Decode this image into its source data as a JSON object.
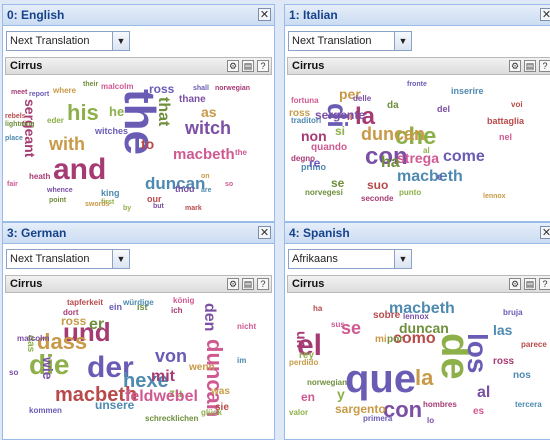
{
  "panels": [
    {
      "title": "0: English",
      "selector": "Next Translation",
      "cirrus_label": "Cirrus",
      "words": [
        "the",
        "and",
        "his",
        "with",
        "witch",
        "macbeth",
        "duncan",
        "to",
        "that",
        "ross",
        "sergeant",
        "he",
        "as",
        "thane",
        "malcolm",
        "king",
        "our",
        "their",
        "shall",
        "norwegian",
        "eder",
        "where",
        "whence",
        "fair",
        "place",
        "rebels",
        "lightning",
        "report",
        "meet",
        "first",
        "swords",
        "but",
        "so",
        "are",
        "mark",
        "point",
        "witches",
        "heath",
        "by",
        "on",
        "thou",
        "the"
      ],
      "colors": [
        "#6a5cb5",
        "#a63b73",
        "#8db04a",
        "#c89a48",
        "#7a4fa4",
        "#cf5a92",
        "#4f8ab0",
        "#b84a4a",
        "#6f8f3d"
      ]
    },
    {
      "title": "1: Italian",
      "selector": "Next Translation",
      "cirrus_label": "Cirrus",
      "words": [
        "di",
        "la",
        "che",
        "duncan",
        "con",
        "strega",
        "macbeth",
        "il",
        "ha",
        "come",
        "non",
        "si",
        "per",
        "sergente",
        "quando",
        "primo",
        "suo",
        "se",
        "re",
        "degno",
        "al",
        "ross",
        "delle",
        "fortuna",
        "traditori",
        "battaglia",
        "norvegesi",
        "fronte",
        "seconde",
        "punto",
        "lennox",
        "del",
        "nel",
        "inserire",
        "voi",
        "da",
        "e"
      ],
      "colors": [
        "#6a5cb5",
        "#a63b73",
        "#8db04a",
        "#c89a48",
        "#7a4fa4",
        "#cf5a92",
        "#4f8ab0",
        "#b84a4a",
        "#6f8f3d"
      ]
    },
    {
      "title": "3: German",
      "selector": "Next Translation",
      "cirrus_label": "Cirrus",
      "words": [
        "der",
        "und",
        "die",
        "dass",
        "den",
        "duncan",
        "hexe",
        "macbeth",
        "er",
        "von",
        "mit",
        "zu",
        "ross",
        "wie",
        "feldwebel",
        "unsere",
        "sie",
        "ist",
        "ein",
        "ich",
        "das",
        "was",
        "malcolm",
        "könig",
        "würdige",
        "tapferkeit",
        "schrecklichen",
        "kommen",
        "dort",
        "glück",
        "wenn",
        "so",
        "nicht",
        "im"
      ],
      "colors": [
        "#6a5cb5",
        "#a63b73",
        "#8db04a",
        "#c89a48",
        "#7a4fa4",
        "#cf5a92",
        "#4f8ab0",
        "#b84a4a",
        "#6f8f3d"
      ]
    },
    {
      "title": "4: Spanish",
      "selector": "Afrikaans",
      "cirrus_label": "Cirrus",
      "words": [
        "que",
        "el",
        "de",
        "la",
        "con",
        "se",
        "macbeth",
        "como",
        "duncan",
        "los",
        "un",
        "y",
        "sargento",
        "al",
        "en",
        "las",
        "ha",
        "por",
        "primera",
        "hombres",
        "valor",
        "perdido",
        "lennox",
        "sus",
        "tercera",
        "parece",
        "norwegian",
        "bruja",
        "ross",
        "rey",
        "mi",
        "lo",
        "es",
        "nos",
        "sobre"
      ],
      "colors": [
        "#6a5cb5",
        "#a63b73",
        "#8db04a",
        "#c89a48",
        "#7a4fa4",
        "#cf5a92",
        "#4f8ab0",
        "#b84a4a",
        "#6f8f3d"
      ]
    }
  ],
  "toolbar_icons": [
    "gear-icon",
    "save-icon",
    "help-icon"
  ],
  "close_glyph": "✕",
  "select_arrow_glyph": "▼",
  "tool_glyphs": [
    "⚙",
    "▤",
    "?"
  ]
}
